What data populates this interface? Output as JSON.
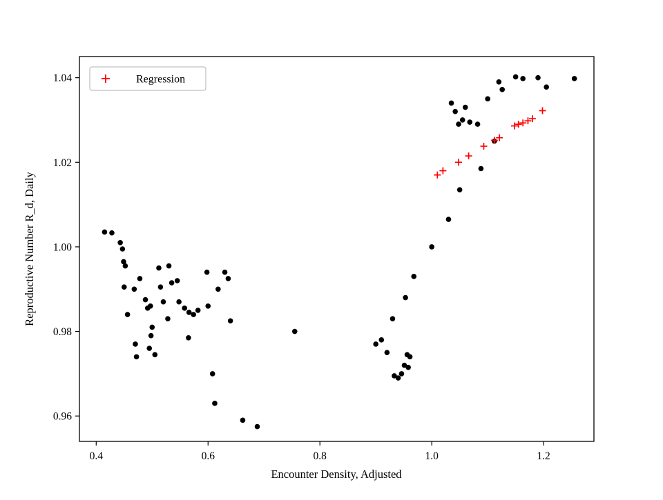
{
  "figure": {
    "background": "#ffffff",
    "marker_color_data": "#000000",
    "marker_color_regression": "#ff0000",
    "legend_border_color": "#b0b0b0"
  },
  "chart_data": {
    "type": "scatter",
    "title": "",
    "xlabel": "Encounter Density, Adjusted",
    "ylabel": "Reproductive Number R_d, Daily",
    "xlim": [
      0.37,
      1.29
    ],
    "ylim": [
      0.954,
      1.045
    ],
    "xticks": [
      0.4,
      0.6,
      0.8,
      1.0,
      1.2
    ],
    "xtick_labels": [
      "0.4",
      "0.6",
      "0.8",
      "1.0",
      "1.2"
    ],
    "yticks": [
      0.96,
      0.98,
      1.0,
      1.02,
      1.04
    ],
    "ytick_labels": [
      "0.96",
      "0.98",
      "1.00",
      "1.02",
      "1.04"
    ],
    "grid": false,
    "legend": {
      "position": "upper left",
      "entries": [
        {
          "label": "Regression",
          "marker": "plus",
          "color": "#ff0000"
        }
      ]
    },
    "series": [
      {
        "name": "data",
        "marker": "circle",
        "color": "#000000",
        "points": [
          [
            0.415,
            1.0035
          ],
          [
            0.428,
            1.0033
          ],
          [
            0.443,
            1.001
          ],
          [
            0.447,
            0.9995
          ],
          [
            0.449,
            0.9965
          ],
          [
            0.452,
            0.9955
          ],
          [
            0.45,
            0.9905
          ],
          [
            0.456,
            0.984
          ],
          [
            0.468,
            0.99
          ],
          [
            0.478,
            0.9925
          ],
          [
            0.47,
            0.977
          ],
          [
            0.472,
            0.974
          ],
          [
            0.488,
            0.9875
          ],
          [
            0.492,
            0.9855
          ],
          [
            0.495,
            0.976
          ],
          [
            0.505,
            0.9745
          ],
          [
            0.5,
            0.981
          ],
          [
            0.497,
            0.986
          ],
          [
            0.498,
            0.979
          ],
          [
            0.512,
            0.995
          ],
          [
            0.53,
            0.9955
          ],
          [
            0.515,
            0.9905
          ],
          [
            0.52,
            0.987
          ],
          [
            0.528,
            0.983
          ],
          [
            0.535,
            0.9915
          ],
          [
            0.545,
            0.992
          ],
          [
            0.548,
            0.987
          ],
          [
            0.558,
            0.9855
          ],
          [
            0.566,
            0.9845
          ],
          [
            0.574,
            0.984
          ],
          [
            0.582,
            0.985
          ],
          [
            0.565,
            0.9785
          ],
          [
            0.598,
            0.994
          ],
          [
            0.6,
            0.986
          ],
          [
            0.608,
            0.97
          ],
          [
            0.612,
            0.963
          ],
          [
            0.618,
            0.99
          ],
          [
            0.63,
            0.994
          ],
          [
            0.636,
            0.9925
          ],
          [
            0.64,
            0.9825
          ],
          [
            0.662,
            0.959
          ],
          [
            0.688,
            0.9575
          ],
          [
            0.755,
            0.98
          ],
          [
            0.9,
            0.977
          ],
          [
            0.91,
            0.978
          ],
          [
            0.92,
            0.975
          ],
          [
            0.93,
            0.983
          ],
          [
            0.933,
            0.9695
          ],
          [
            0.94,
            0.969
          ],
          [
            0.946,
            0.97
          ],
          [
            0.951,
            0.972
          ],
          [
            0.956,
            0.9745
          ],
          [
            0.961,
            0.974
          ],
          [
            0.958,
            0.9715
          ],
          [
            0.953,
            0.988
          ],
          [
            0.968,
            0.993
          ],
          [
            1.0,
            1.0
          ],
          [
            1.03,
            1.0065
          ],
          [
            1.05,
            1.0135
          ],
          [
            1.088,
            1.0185
          ],
          [
            1.035,
            1.034
          ],
          [
            1.042,
            1.032
          ],
          [
            1.048,
            1.029
          ],
          [
            1.055,
            1.03
          ],
          [
            1.06,
            1.033
          ],
          [
            1.068,
            1.0295
          ],
          [
            1.082,
            1.029
          ],
          [
            1.1,
            1.035
          ],
          [
            1.112,
            1.025
          ],
          [
            1.12,
            1.039
          ],
          [
            1.126,
            1.0372
          ],
          [
            1.15,
            1.0402
          ],
          [
            1.163,
            1.0398
          ],
          [
            1.19,
            1.04
          ],
          [
            1.205,
            1.0378
          ],
          [
            1.255,
            1.0398
          ]
        ]
      },
      {
        "name": "Regression",
        "marker": "plus",
        "color": "#ff0000",
        "points": [
          [
            1.01,
            1.017
          ],
          [
            1.02,
            1.018
          ],
          [
            1.048,
            1.02
          ],
          [
            1.066,
            1.0215
          ],
          [
            1.093,
            1.0238
          ],
          [
            1.112,
            1.0252
          ],
          [
            1.121,
            1.0258
          ],
          [
            1.148,
            1.0286
          ],
          [
            1.155,
            1.029
          ],
          [
            1.163,
            1.0293
          ],
          [
            1.172,
            1.0298
          ],
          [
            1.18,
            1.0303
          ],
          [
            1.198,
            1.0322
          ]
        ]
      }
    ]
  }
}
